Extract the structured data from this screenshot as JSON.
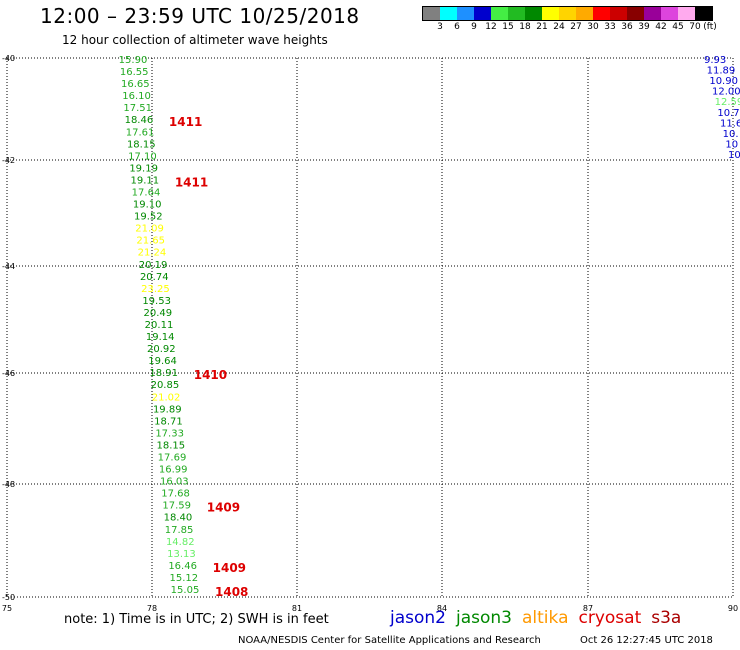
{
  "header": {
    "title": "12:00 – 23:59 UTC 10/25/2018",
    "subtitle": "12 hour collection of altimeter wave heights"
  },
  "scale": {
    "unit": "(ft)",
    "colors": [
      "#808080",
      "#00ffff",
      "#1e90ff",
      "#0000cd",
      "#44ee44",
      "#22bb22",
      "#008800",
      "#ffff00",
      "#ffd400",
      "#ffaa00",
      "#ff0000",
      "#cc0000",
      "#880000",
      "#990099",
      "#dd44dd",
      "#ffaaee",
      "#000000"
    ],
    "labels": [
      "3",
      "6",
      "9",
      "12",
      "15",
      "18",
      "21",
      "24",
      "27",
      "30",
      "33",
      "36",
      "39",
      "42",
      "45",
      "70"
    ]
  },
  "map": {
    "lon_ticks": [
      "75",
      "78",
      "81",
      "84",
      "87",
      "90"
    ],
    "lat_ticks": [
      "-40",
      "-42",
      "-44",
      "-46",
      "-48",
      "-50"
    ]
  },
  "track_main": [
    {
      "v": "15.90",
      "c": "#22aa22"
    },
    {
      "v": "16.55",
      "c": "#22aa22"
    },
    {
      "v": "16.65",
      "c": "#22aa22"
    },
    {
      "v": "16.10",
      "c": "#22aa22"
    },
    {
      "v": "17.51",
      "c": "#22aa22"
    },
    {
      "v": "18.46",
      "c": "#008800"
    },
    {
      "v": "17.61",
      "c": "#22aa22"
    },
    {
      "v": "18.15",
      "c": "#008800"
    },
    {
      "v": "17.10",
      "c": "#22aa22"
    },
    {
      "v": "19.19",
      "c": "#008800"
    },
    {
      "v": "19.11",
      "c": "#008800"
    },
    {
      "v": "17.64",
      "c": "#22aa22"
    },
    {
      "v": "19.10",
      "c": "#008800"
    },
    {
      "v": "19.52",
      "c": "#008800"
    },
    {
      "v": "21.09",
      "c": "#ffff00"
    },
    {
      "v": "21.65",
      "c": "#ffff00"
    },
    {
      "v": "21.24",
      "c": "#ffff00"
    },
    {
      "v": "20.19",
      "c": "#008800"
    },
    {
      "v": "20.74",
      "c": "#008800"
    },
    {
      "v": "23.25",
      "c": "#ffff00"
    },
    {
      "v": "19.53",
      "c": "#008800"
    },
    {
      "v": "20.49",
      "c": "#008800"
    },
    {
      "v": "20.11",
      "c": "#008800"
    },
    {
      "v": "19.14",
      "c": "#008800"
    },
    {
      "v": "20.92",
      "c": "#008800"
    },
    {
      "v": "19.64",
      "c": "#008800"
    },
    {
      "v": "18.91",
      "c": "#008800"
    },
    {
      "v": "20.85",
      "c": "#008800"
    },
    {
      "v": "21.02",
      "c": "#ffff00"
    },
    {
      "v": "19.89",
      "c": "#008800"
    },
    {
      "v": "18.71",
      "c": "#008800"
    },
    {
      "v": "17.33",
      "c": "#22aa22"
    },
    {
      "v": "18.15",
      "c": "#008800"
    },
    {
      "v": "17.69",
      "c": "#22aa22"
    },
    {
      "v": "16.99",
      "c": "#22aa22"
    },
    {
      "v": "16.03",
      "c": "#22aa22"
    },
    {
      "v": "17.68",
      "c": "#22aa22"
    },
    {
      "v": "17.59",
      "c": "#22aa22"
    },
    {
      "v": "18.40",
      "c": "#008800"
    },
    {
      "v": "17.85",
      "c": "#22aa22"
    },
    {
      "v": "14.82",
      "c": "#66ee66"
    },
    {
      "v": "13.13",
      "c": "#66ee66"
    },
    {
      "v": "16.46",
      "c": "#22aa22"
    },
    {
      "v": "15.12",
      "c": "#22aa22"
    },
    {
      "v": "15.05",
      "c": "#22aa22"
    }
  ],
  "track_east": [
    {
      "v": "9.93",
      "c": "#0000cd"
    },
    {
      "v": "11.89",
      "c": "#0000cd"
    },
    {
      "v": "10.90",
      "c": "#0000cd"
    },
    {
      "v": "12.00",
      "c": "#0000cd"
    },
    {
      "v": "12.59",
      "c": "#66ee66"
    },
    {
      "v": "10.74",
      "c": "#0000cd"
    },
    {
      "v": "11.6",
      "c": "#0000cd"
    },
    {
      "v": "10.",
      "c": "#0000cd"
    },
    {
      "v": "10",
      "c": "#0000cd"
    },
    {
      "v": "10",
      "c": "#0000cd"
    }
  ],
  "time_labels": [
    "1411",
    "1411",
    "1410",
    "1409",
    "1409",
    "1408"
  ],
  "footer": {
    "note": "note:  1) Time is in UTC;  2) SWH is in feet",
    "satellites": [
      {
        "name": "jason2",
        "color": "#0000cc"
      },
      {
        "name": "jason3",
        "color": "#008800"
      },
      {
        "name": "altika",
        "color": "#ff9900"
      },
      {
        "name": "cryosat",
        "color": "#dd0000"
      },
      {
        "name": "s3a",
        "color": "#aa0000"
      }
    ],
    "credit": "NOAA/NESDIS Center for Satellite Applications and Research",
    "timestamp": "Oct 26 12:27:45 UTC 2018"
  }
}
